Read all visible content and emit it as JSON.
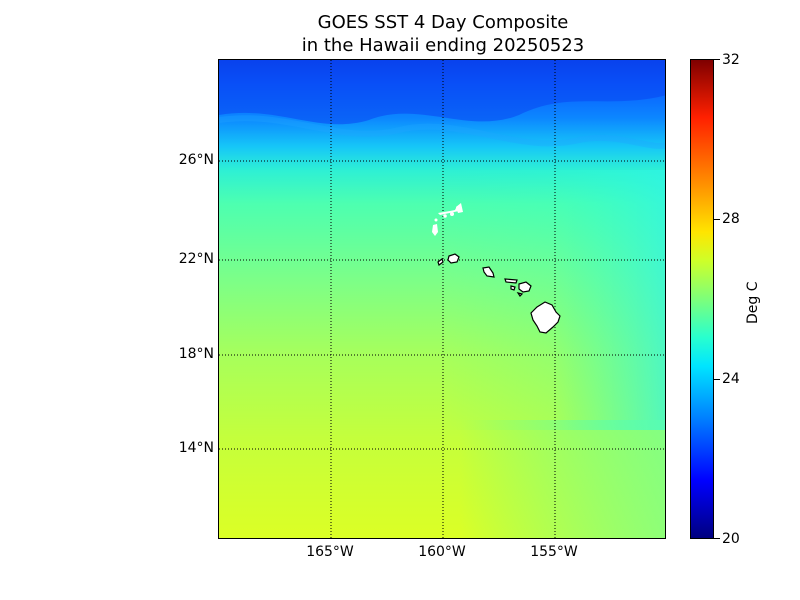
{
  "title": {
    "line1": "GOES SST 4 Day Composite",
    "line2": "in the Hawaii ending 20250523"
  },
  "map": {
    "lat_labels": [
      "26°N",
      "22°N",
      "18°N",
      "14°N"
    ],
    "lon_labels": [
      "165°W",
      "160°W",
      "155°W"
    ],
    "gridlines": "dotted",
    "land_color": "#ffffff",
    "coastline_color": "#000000"
  },
  "colorbar": {
    "ticks": [
      "32",
      "28",
      "24",
      "20"
    ],
    "unit_label": "Deg C",
    "colormap": "jet",
    "range": [
      20,
      32
    ]
  }
}
